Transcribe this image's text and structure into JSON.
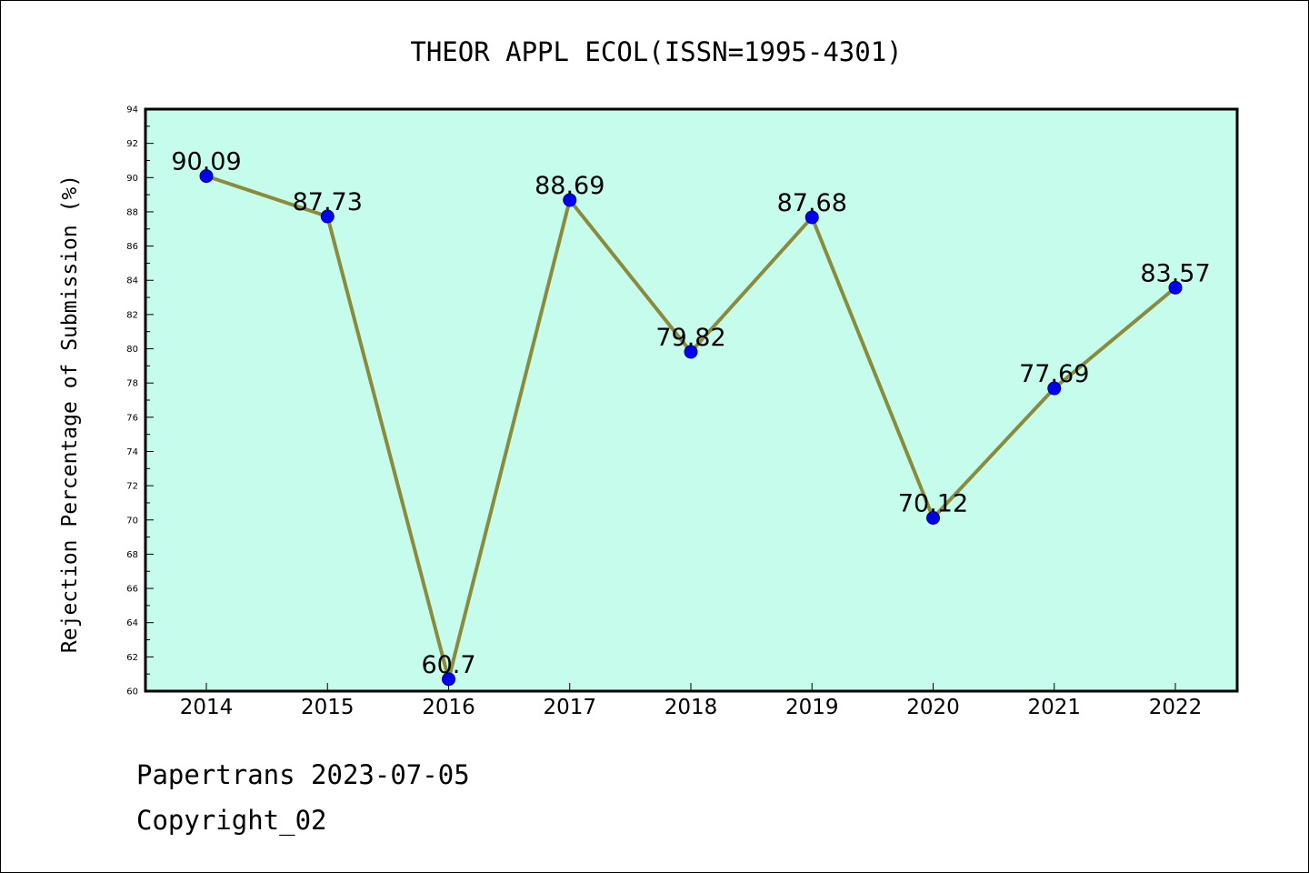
{
  "chart_data": {
    "type": "line",
    "title": "THEOR APPL ECOL(ISSN=1995-4301)",
    "ylabel": "Rejection Percentage of Submission (%)",
    "xlabel": "",
    "categories": [
      "2014",
      "2015",
      "2016",
      "2017",
      "2018",
      "2019",
      "2020",
      "2021",
      "2022"
    ],
    "values": [
      90.09,
      87.73,
      60.7,
      88.69,
      79.82,
      87.68,
      70.12,
      77.69,
      83.57
    ],
    "data_labels": [
      "90.09",
      "87.73",
      "60.7",
      "88.69",
      "79.82",
      "87.68",
      "70.12",
      "77.69",
      "83.57"
    ],
    "ylim": [
      60,
      94
    ],
    "yticks": [
      60,
      62,
      64,
      66,
      68,
      70,
      72,
      74,
      76,
      78,
      80,
      82,
      84,
      86,
      88,
      90,
      92,
      94
    ],
    "grid": false,
    "colors": {
      "plot_background": "#c6fcec",
      "line": "#8b8b3c",
      "marker": "#0000ee"
    }
  },
  "footer": {
    "line1": "Papertrans 2023-07-05",
    "line2": "Copyright_02"
  }
}
